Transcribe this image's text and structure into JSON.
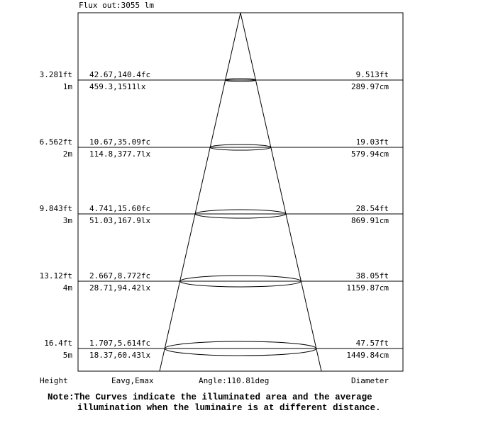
{
  "flux_label": "Flux out:3055 lm",
  "angle_label": "Angle:110.81deg",
  "footer": {
    "height": "Height",
    "eavg_emax": "Eavg,Emax",
    "diameter": "Diameter"
  },
  "note": {
    "line1": "Note:The Curves indicate the illuminated area and the average",
    "line2": "illumination when the luminaire is at different distance."
  },
  "levels": [
    {
      "height_ft": "3.281ft",
      "height_m": "1m",
      "fc": "42.67,140.4fc",
      "lx": "459.3,1511lx",
      "diameter_ft": "9.513ft",
      "diameter_cm": "289.97cm"
    },
    {
      "height_ft": "6.562ft",
      "height_m": "2m",
      "fc": "10.67,35.09fc",
      "lx": "114.8,377.7lx",
      "diameter_ft": "19.03ft",
      "diameter_cm": "579.94cm"
    },
    {
      "height_ft": "9.843ft",
      "height_m": "3m",
      "fc": "4.741,15.60fc",
      "lx": "51.03,167.9lx",
      "diameter_ft": "28.54ft",
      "diameter_cm": "869.91cm"
    },
    {
      "height_ft": "13.12ft",
      "height_m": "4m",
      "fc": "2.667,8.772fc",
      "lx": "28.71,94.42lx",
      "diameter_ft": "38.05ft",
      "diameter_cm": "1159.87cm"
    },
    {
      "height_ft": "16.4ft",
      "height_m": "5m",
      "fc": "1.707,5.614fc",
      "lx": "18.37,60.43lx",
      "diameter_ft": "47.57ft",
      "diameter_cm": "1449.84cm"
    }
  ]
}
